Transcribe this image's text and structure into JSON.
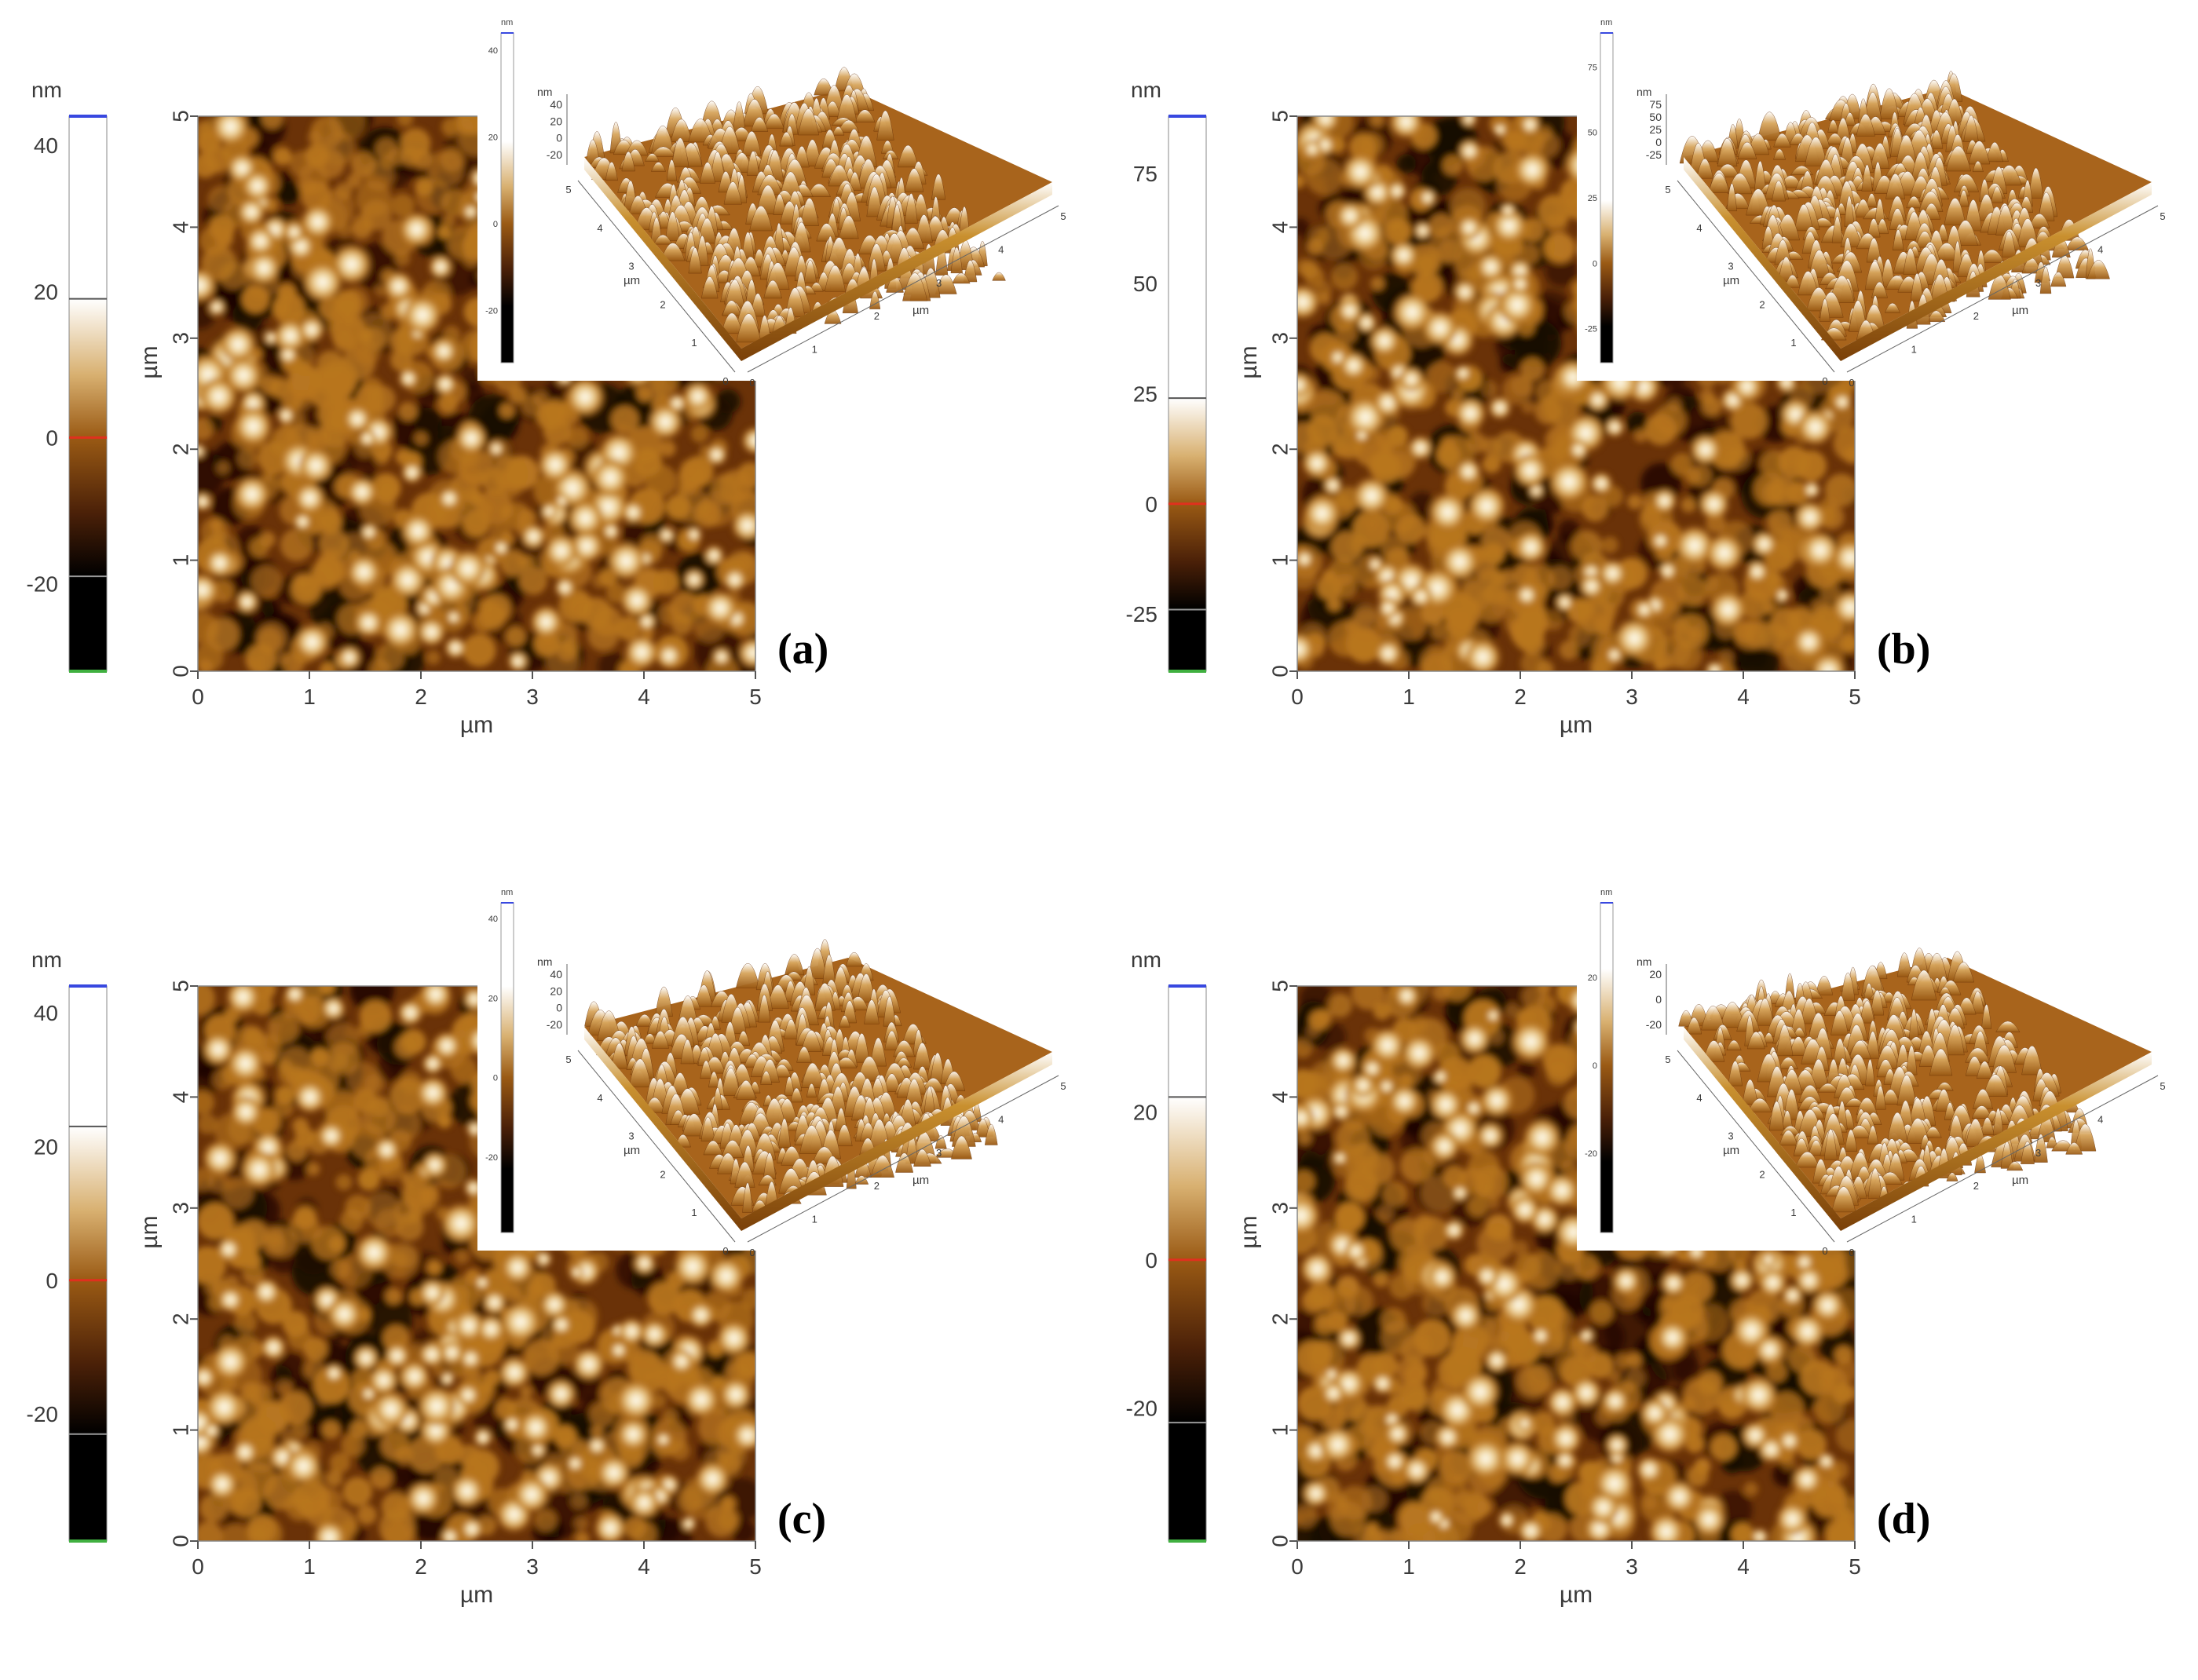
{
  "colors": {
    "dark": "#000000",
    "mid": "#9a5a14",
    "light": "#ffffff",
    "zero_line": "#e0301e",
    "top_line": "#3848e0",
    "bottom_line": "#40b040"
  },
  "panels": [
    {
      "id": "a",
      "tag": "(a)",
      "colorbar": {
        "unit": "nm",
        "ticks": [
          "40",
          "20",
          "0",
          "-20"
        ],
        "tick_values": [
          40,
          20,
          0,
          -20
        ],
        "min": -32,
        "max": 44,
        "white_from": 19,
        "black_below": -19
      },
      "map": {
        "x_unit": "µm",
        "y_unit": "µm",
        "x_ticks": [
          "0",
          "1",
          "2",
          "3",
          "4",
          "5"
        ],
        "y_ticks": [
          "0",
          "1",
          "2",
          "3",
          "4",
          "5"
        ]
      },
      "inset": {
        "unit": "nm",
        "z_ticks": [
          "40",
          "20",
          "0",
          "-20"
        ],
        "bar_ticks": [
          "40",
          "20",
          "0",
          "-20"
        ],
        "x_unit": "µm",
        "y_unit": "µm",
        "axis_ticks": [
          "0",
          "1",
          "2",
          "3",
          "4",
          "5"
        ]
      }
    },
    {
      "id": "b",
      "tag": "(b)",
      "colorbar": {
        "unit": "nm",
        "ticks": [
          "75",
          "50",
          "25",
          "0",
          "-25"
        ],
        "tick_values": [
          75,
          50,
          25,
          0,
          -25
        ],
        "min": -38,
        "max": 88,
        "white_from": 24,
        "black_below": -24
      },
      "map": {
        "x_unit": "µm",
        "y_unit": "µm",
        "x_ticks": [
          "0",
          "1",
          "2",
          "3",
          "4",
          "5"
        ],
        "y_ticks": [
          "0",
          "1",
          "2",
          "3",
          "4",
          "5"
        ]
      },
      "inset": {
        "unit": "nm",
        "z_ticks": [
          "75",
          "50",
          "25",
          "0",
          "-25"
        ],
        "bar_ticks": [
          "75",
          "50",
          "25",
          "0",
          "-25"
        ],
        "x_unit": "µm",
        "y_unit": "µm",
        "axis_ticks": [
          "0",
          "1",
          "2",
          "3",
          "4",
          "5"
        ]
      }
    },
    {
      "id": "c",
      "tag": "(c)",
      "colorbar": {
        "unit": "nm",
        "ticks": [
          "40",
          "20",
          "0",
          "-20"
        ],
        "tick_values": [
          40,
          20,
          0,
          -20
        ],
        "min": -39,
        "max": 44,
        "white_from": 23,
        "black_below": -23
      },
      "map": {
        "x_unit": "µm",
        "y_unit": "µm",
        "x_ticks": [
          "0",
          "1",
          "2",
          "3",
          "4",
          "5"
        ],
        "y_ticks": [
          "0",
          "1",
          "2",
          "3",
          "4",
          "5"
        ]
      },
      "inset": {
        "unit": "nm",
        "z_ticks": [
          "40",
          "20",
          "0",
          "-20"
        ],
        "bar_ticks": [
          "40",
          "20",
          "0",
          "-20"
        ],
        "x_unit": "µm",
        "y_unit": "µm",
        "axis_ticks": [
          "0",
          "1",
          "2",
          "3",
          "4",
          "5"
        ]
      }
    },
    {
      "id": "d",
      "tag": "(d)",
      "colorbar": {
        "unit": "nm",
        "ticks": [
          "20",
          "0",
          "-20"
        ],
        "tick_values": [
          20,
          0,
          -20
        ],
        "min": -38,
        "max": 37,
        "white_from": 22,
        "black_below": -22
      },
      "map": {
        "x_unit": "µm",
        "y_unit": "µm",
        "x_ticks": [
          "0",
          "1",
          "2",
          "3",
          "4",
          "5"
        ],
        "y_ticks": [
          "0",
          "1",
          "2",
          "3",
          "4",
          "5"
        ]
      },
      "inset": {
        "unit": "nm",
        "z_ticks": [
          "20",
          "0",
          "-20"
        ],
        "bar_ticks": [
          "20",
          "0",
          "-20"
        ],
        "x_unit": "µm",
        "y_unit": "µm",
        "axis_ticks": [
          "0",
          "1",
          "2",
          "3",
          "4",
          "5"
        ]
      }
    }
  ]
}
